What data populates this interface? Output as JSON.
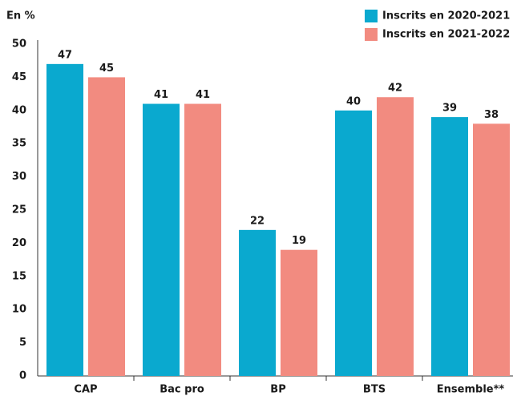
{
  "chart_data": {
    "type": "bar",
    "y_label": "En %",
    "categories": [
      "CAP",
      "Bac pro",
      "BP",
      "BTS",
      "Ensemble**"
    ],
    "series": [
      {
        "name": "Inscrits en 2020-2021",
        "color": "#0aa9cf",
        "values": [
          47,
          41,
          22,
          40,
          39
        ]
      },
      {
        "name": "Inscrits en 2021-2022",
        "color": "#f28b80",
        "values": [
          45,
          41,
          19,
          42,
          38
        ]
      }
    ],
    "ylim": [
      0,
      50
    ],
    "yticks": [
      0,
      5,
      10,
      15,
      20,
      25,
      30,
      35,
      40,
      45,
      50
    ],
    "grid": false,
    "legend": "top-right"
  }
}
